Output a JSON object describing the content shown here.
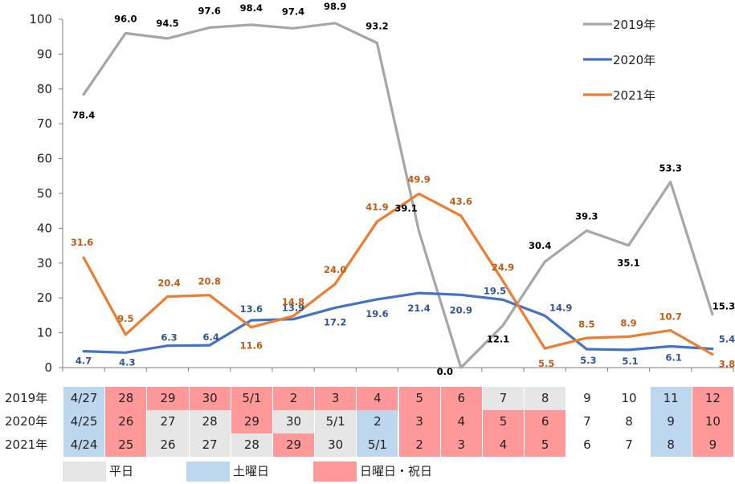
{
  "chart_data": {
    "type": "line",
    "ylim": [
      0,
      100
    ],
    "yticks": [
      "0",
      "10",
      "20",
      "30",
      "40",
      "50",
      "60",
      "70",
      "80",
      "90",
      "100"
    ],
    "grid": false,
    "legend_position": "top-right",
    "series": [
      {
        "name": "2019年",
        "color": "#A6A6A6",
        "label_color": "#000000",
        "values": [
          78.4,
          96.0,
          94.5,
          97.6,
          98.4,
          97.4,
          98.9,
          93.2,
          39.1,
          0.0,
          12.1,
          30.4,
          39.3,
          35.1,
          53.3,
          15.3
        ],
        "labels": [
          "78.4",
          "96.0",
          "94.5",
          "97.6",
          "98.4",
          "97.4",
          "98.9",
          "93.2",
          "39.1",
          "0.0",
          "12.1",
          "30.4",
          "39.3",
          "35.1",
          "53.3",
          "15.3"
        ]
      },
      {
        "name": "2020年",
        "color": "#4472C4",
        "label_color": "#2F5597",
        "values": [
          4.7,
          4.3,
          6.3,
          6.4,
          13.6,
          13.9,
          17.2,
          19.6,
          21.4,
          20.9,
          19.5,
          14.9,
          5.3,
          5.1,
          6.1,
          5.4
        ],
        "labels": [
          "4.7",
          "4.3",
          "6.3",
          "6.4",
          "13.6",
          "13.9",
          "17.2",
          "19.6",
          "21.4",
          "20.9",
          "19.5",
          "14.9",
          "5.3",
          "5.1",
          "6.1",
          "5.4"
        ]
      },
      {
        "name": "2021年",
        "color": "#ED7D31",
        "label_color": "#C55A11",
        "values": [
          31.6,
          9.5,
          20.4,
          20.8,
          11.6,
          14.8,
          24.0,
          41.9,
          49.9,
          43.6,
          24.9,
          5.5,
          8.5,
          8.9,
          10.7,
          3.8
        ],
        "labels": [
          "31.6",
          "9.5",
          "20.4",
          "20.8",
          "11.6",
          "14.8",
          "24.0",
          "41.9",
          "49.9",
          "43.6",
          "24.9",
          "5.5",
          "8.5",
          "8.9",
          "10.7",
          "3.8"
        ]
      }
    ]
  },
  "calendar": {
    "colors": {
      "weekday": "#E7E6E6",
      "saturday": "#BDD7EE",
      "holiday": "#FF9999"
    },
    "rows": [
      {
        "label": "2019年",
        "days": [
          "4/27",
          "28",
          "29",
          "30",
          "5/1",
          "2",
          "3",
          "4",
          "5",
          "6",
          "7",
          "8",
          "9",
          "10",
          "11",
          "12"
        ],
        "types": [
          "saturday",
          "holiday",
          "holiday",
          "holiday",
          "holiday",
          "holiday",
          "holiday",
          "holiday",
          "holiday",
          "holiday",
          "weekday",
          "weekday",
          "none",
          "none",
          "saturday",
          "holiday"
        ]
      },
      {
        "label": "2020年",
        "days": [
          "4/25",
          "26",
          "27",
          "28",
          "29",
          "30",
          "5/1",
          "2",
          "3",
          "4",
          "5",
          "6",
          "7",
          "8",
          "9",
          "10"
        ],
        "types": [
          "saturday",
          "holiday",
          "weekday",
          "weekday",
          "holiday",
          "weekday",
          "weekday",
          "saturday",
          "holiday",
          "holiday",
          "holiday",
          "holiday",
          "none",
          "none",
          "saturday",
          "holiday"
        ]
      },
      {
        "label": "2021年",
        "days": [
          "4/24",
          "25",
          "26",
          "27",
          "28",
          "29",
          "30",
          "5/1",
          "2",
          "3",
          "4",
          "5",
          "6",
          "7",
          "8",
          "9"
        ],
        "types": [
          "saturday",
          "holiday",
          "weekday",
          "weekday",
          "weekday",
          "holiday",
          "weekday",
          "saturday",
          "holiday",
          "holiday",
          "holiday",
          "holiday",
          "none",
          "none",
          "saturday",
          "holiday"
        ]
      }
    ],
    "legend": [
      {
        "type": "weekday",
        "label": "平日"
      },
      {
        "type": "saturday",
        "label": "土曜日"
      },
      {
        "type": "holiday",
        "label": "日曜日・祝日"
      }
    ]
  }
}
